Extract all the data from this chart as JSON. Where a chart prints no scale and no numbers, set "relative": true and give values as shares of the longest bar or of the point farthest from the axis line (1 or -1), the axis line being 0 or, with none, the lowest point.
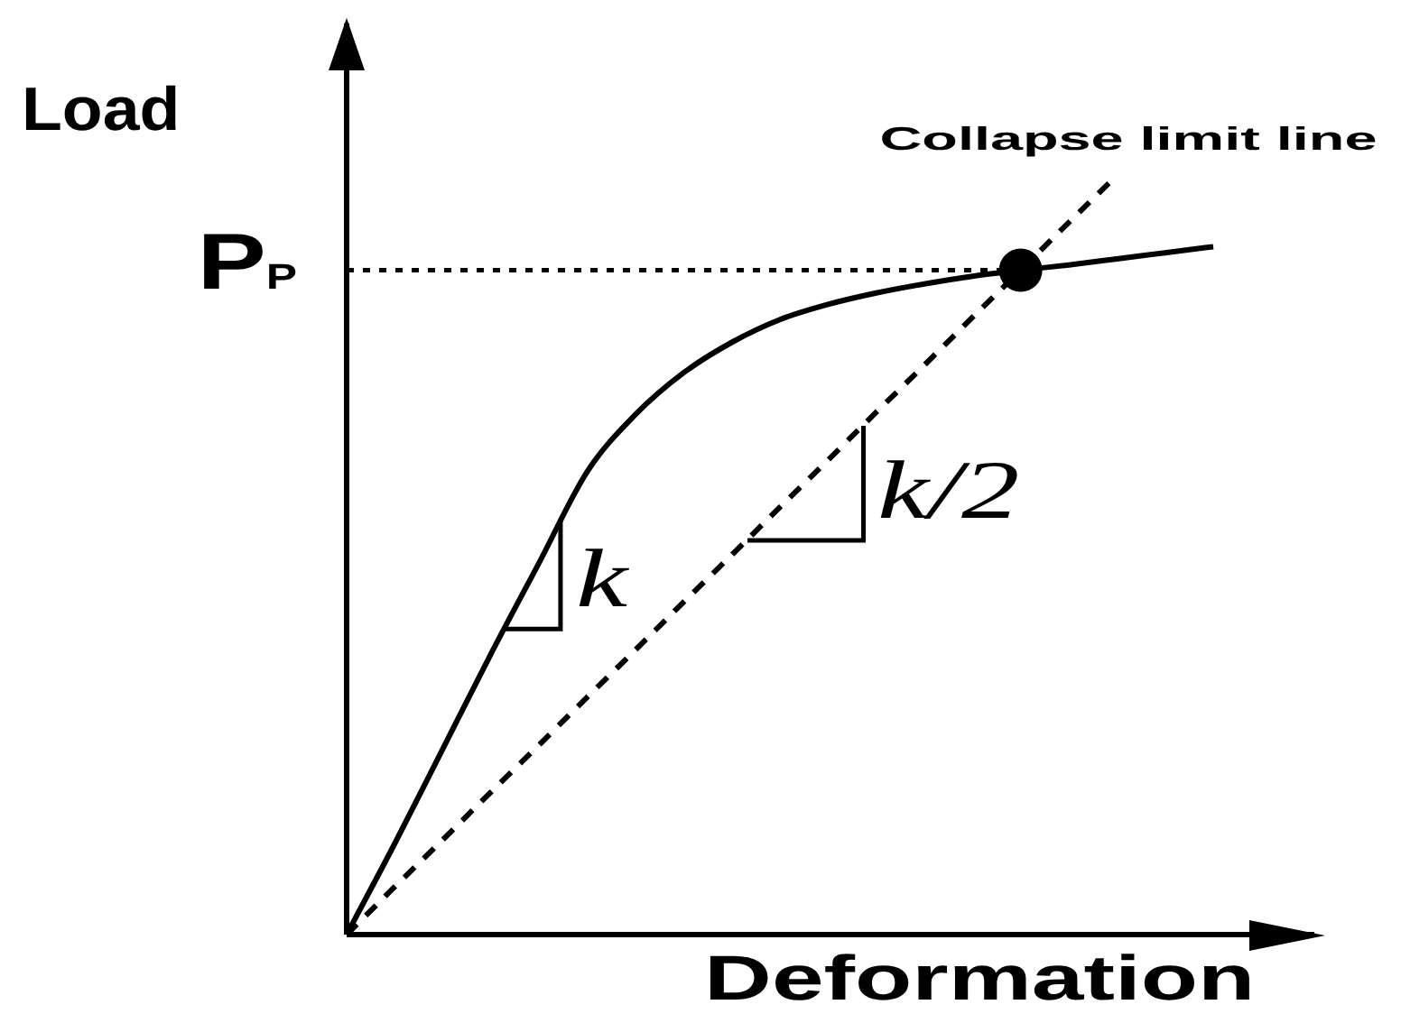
{
  "chart_data": {
    "type": "line",
    "xlabel": "Deformation",
    "ylabel": "Load",
    "relative": true,
    "marker": "none",
    "categories": [
      null,
      null,
      null,
      null,
      null,
      null,
      null,
      null,
      null,
      null,
      null,
      null,
      null,
      null,
      null,
      null,
      null,
      null,
      null
    ],
    "series": [
      {
        "color": "#000000",
        "line_style": "solid",
        "values": [
          0,
          0.12,
          0.245,
          0.37,
          0.49,
          0.61,
          0.685,
          0.74,
          0.78,
          0.81,
          0.83,
          0.845,
          0.857,
          0.867,
          0.875,
          0.882,
          0.89,
          0.898,
          0.906
        ]
      },
      {
        "name": "Collapse limit line",
        "color": "#000000",
        "line_style": "dashed",
        "values": [
          0,
          0.063,
          0.125,
          0.188,
          0.25,
          0.313,
          0.375,
          0.438,
          0.5,
          0.563,
          0.625,
          0.688,
          0.75,
          0.813,
          0.875,
          0.938,
          1,
          null,
          null
        ]
      },
      {
        "color": "#000000",
        "marker": "circle",
        "values": [
          null,
          null,
          null,
          null,
          null,
          null,
          null,
          null,
          null,
          null,
          null,
          null,
          null,
          null,
          0.875,
          null,
          null,
          null,
          null
        ]
      }
    ],
    "ref_lines": [
      {
        "axis": "y",
        "value": 0.875,
        "label": "P$_{P}$",
        "line_style": "dotted",
        "color": "#000000"
      }
    ],
    "annotations": [
      "k",
      "k/2"
    ]
  }
}
